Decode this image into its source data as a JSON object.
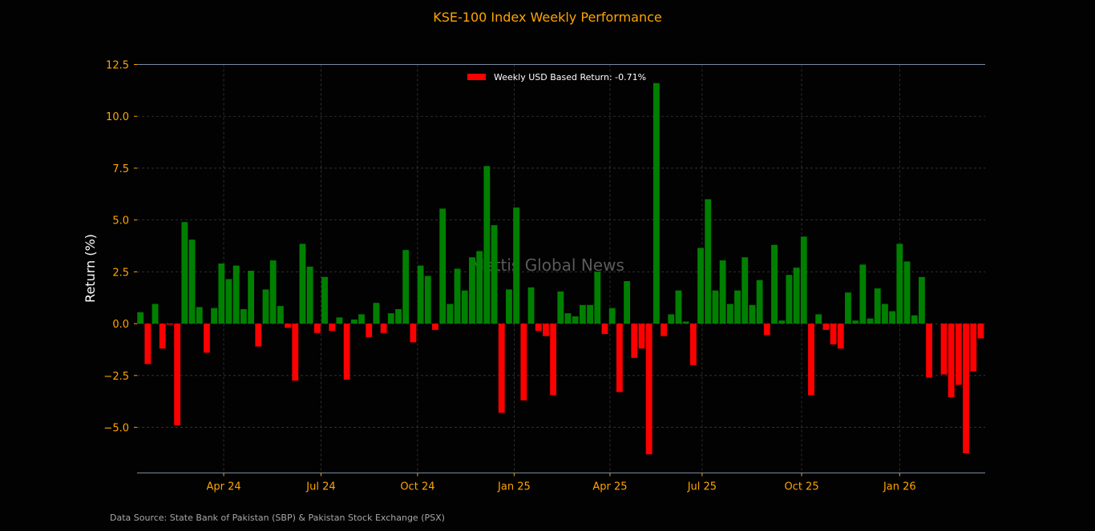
{
  "chart_data": {
    "type": "bar",
    "title": "KSE-100 Index Weekly Performance",
    "xlabel": "",
    "ylabel": "Return (%)",
    "ylim": [
      -7.2,
      12.5
    ],
    "xlim": [
      -0.45,
      114.6
    ],
    "grid": true,
    "legend": {
      "label": "Weekly USD Based Return: -0.71%",
      "placement": "top-center"
    },
    "watermark": "Mettis Global News",
    "source": "Data Source: State Bank of Pakistan (SBP) & Pakistan Stock Exchange (PSX)",
    "colors": {
      "positive": "#008000",
      "negative": "#FF0000",
      "text": "#FFA500",
      "axis": "#7a8aa0"
    },
    "yticks": [
      -5.0,
      -2.5,
      0.0,
      2.5,
      5.0,
      7.5,
      10.0,
      12.5
    ],
    "ytick_labels": [
      "−5.0",
      "−2.5",
      "0.0",
      "2.5",
      "5.0",
      "7.5",
      "10.0",
      "12.5"
    ],
    "xticks": [
      {
        "week": 11.3,
        "label": "Apr 24"
      },
      {
        "week": 24.5,
        "label": "Jul 24"
      },
      {
        "week": 37.6,
        "label": "Oct 24"
      },
      {
        "week": 50.7,
        "label": "Jan 25"
      },
      {
        "week": 63.7,
        "label": "Apr 25"
      },
      {
        "week": 76.2,
        "label": "Jul 25"
      },
      {
        "week": 89.7,
        "label": "Oct 25"
      },
      {
        "week": 103.0,
        "label": "Jan 26"
      }
    ],
    "values": [
      0.55,
      -1.95,
      0.95,
      -1.2,
      -0.05,
      -4.9,
      4.9,
      4.05,
      0.8,
      -1.4,
      0.75,
      2.9,
      2.15,
      2.8,
      0.7,
      2.55,
      -1.1,
      1.65,
      3.05,
      0.85,
      -0.2,
      -2.75,
      3.85,
      2.75,
      -0.45,
      2.25,
      -0.35,
      0.3,
      -2.7,
      0.2,
      0.45,
      -0.65,
      1.0,
      -0.45,
      0.5,
      0.7,
      3.55,
      -0.9,
      2.8,
      2.3,
      -0.3,
      5.55,
      0.95,
      2.65,
      1.6,
      3.2,
      3.5,
      7.6,
      4.75,
      -4.3,
      1.65,
      5.6,
      -3.7,
      1.75,
      -0.35,
      -0.6,
      -3.45,
      1.55,
      0.5,
      0.35,
      0.9,
      0.9,
      2.5,
      -0.5,
      0.75,
      -3.3,
      2.05,
      -1.65,
      -1.2,
      -6.3,
      11.6,
      -0.6,
      0.45,
      1.6,
      0.1,
      -2.0,
      3.65,
      6.0,
      1.6,
      3.05,
      0.95,
      1.6,
      3.2,
      0.9,
      2.1,
      -0.55,
      3.8,
      0.15,
      2.35,
      2.7,
      4.2,
      -3.45,
      0.45,
      -0.3,
      -1.0,
      -1.2,
      1.5,
      0.15,
      2.85,
      0.25,
      1.7,
      0.95,
      0.6,
      3.85,
      3.0,
      0.4,
      2.25,
      -2.6,
      0.0,
      -2.45,
      -3.55,
      -2.95,
      -6.25,
      -2.3,
      -0.71
    ]
  }
}
